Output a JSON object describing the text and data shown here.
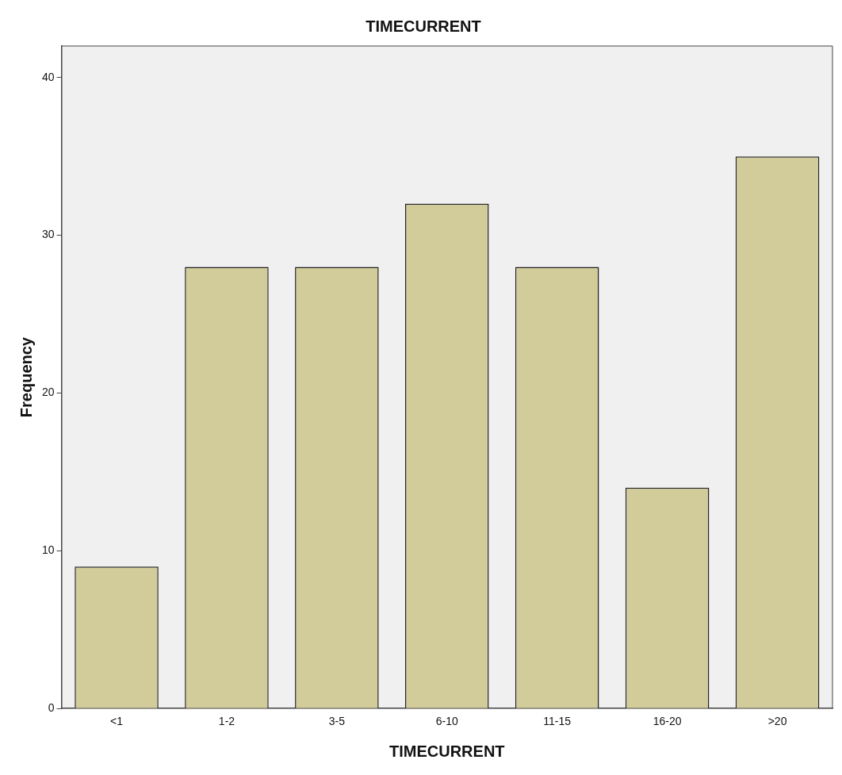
{
  "chart_data": {
    "type": "bar",
    "title": "TIMECURRENT",
    "xlabel": "TIMECURRENT",
    "ylabel": "Frequency",
    "categories": [
      "<1",
      "1-2",
      "3-5",
      "6-10",
      "11-15",
      "16-20",
      ">20"
    ],
    "values": [
      9,
      28,
      28,
      32,
      28,
      14,
      35
    ],
    "color": "#d2cc9a",
    "ylim": [
      0,
      42
    ],
    "yticks": [
      0,
      10,
      20,
      30,
      40
    ]
  }
}
